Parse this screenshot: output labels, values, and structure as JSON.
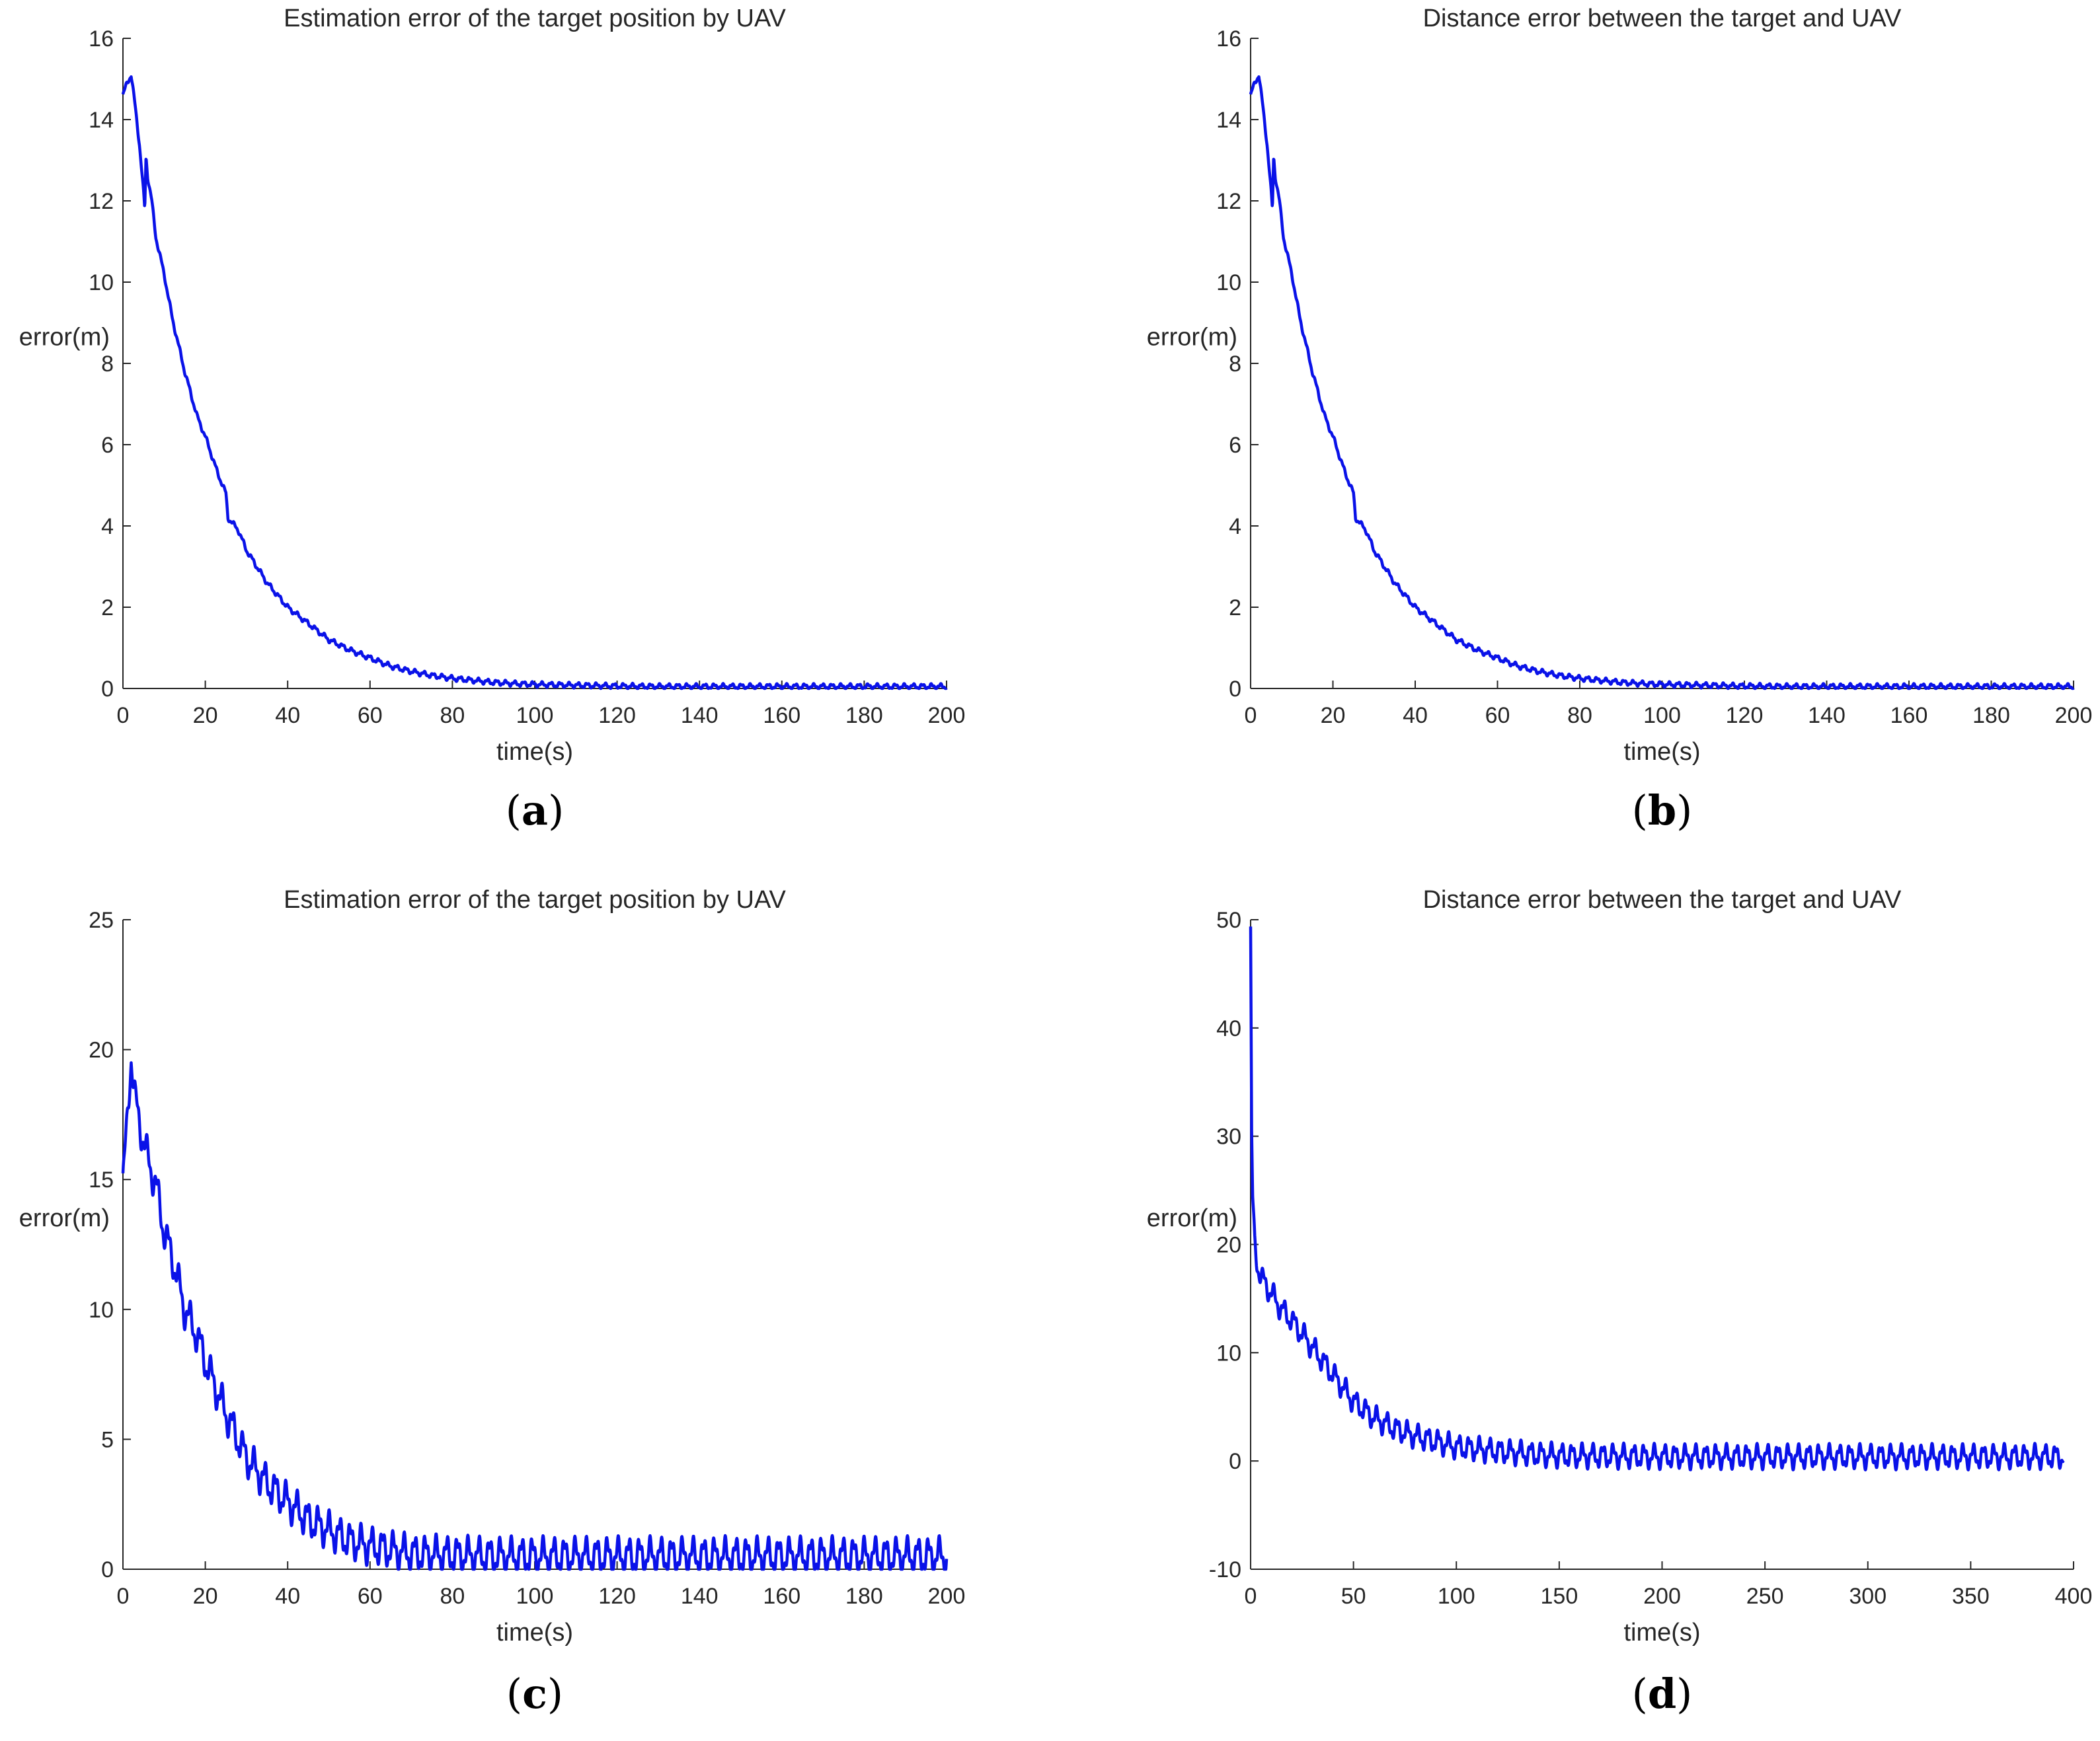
{
  "colors": {
    "line": "#0a12e8",
    "axis": "#262626",
    "background": "#ffffff"
  },
  "chart_data": [
    {
      "id": "a",
      "type": "line",
      "caption": "a",
      "title": "Estimation error of the target position by UAV",
      "xlabel": "time(s)",
      "ylabel": "error(m)",
      "xlim": [
        0,
        200
      ],
      "ylim": [
        0,
        16
      ],
      "xticks": [
        0,
        20,
        40,
        60,
        80,
        100,
        120,
        140,
        160,
        180,
        200
      ],
      "yticks": [
        0,
        2,
        4,
        6,
        8,
        10,
        12,
        14,
        16
      ],
      "series": [
        {
          "name": "estimation error",
          "x": [
            0,
            1,
            2,
            3,
            4,
            5,
            5.3,
            5.6,
            6,
            7,
            8,
            10,
            12,
            15,
            18,
            20,
            23,
            25,
            25.5,
            28,
            30,
            35,
            40,
            45,
            50,
            55,
            60,
            65,
            70,
            75,
            80,
            85,
            90,
            95,
            100,
            110,
            120,
            130,
            140,
            150,
            160,
            170,
            180,
            190,
            200
          ],
          "y": [
            14.6,
            14.9,
            15.1,
            14.3,
            13.4,
            12.2,
            11.8,
            13.1,
            12.6,
            12.0,
            11.1,
            10.2,
            9.1,
            7.8,
            6.7,
            6.2,
            5.3,
            4.8,
            4.2,
            3.9,
            3.4,
            2.6,
            2.0,
            1.6,
            1.2,
            0.95,
            0.75,
            0.55,
            0.42,
            0.32,
            0.25,
            0.2,
            0.15,
            0.12,
            0.1,
            0.08,
            0.06,
            0.05,
            0.05,
            0.05,
            0.05,
            0.05,
            0.05,
            0.05,
            0.05
          ],
          "noise": 0.05,
          "period": 2.2
        }
      ]
    },
    {
      "id": "b",
      "type": "line",
      "caption": "b",
      "title": "Distance error between the target and UAV",
      "xlabel": "time(s)",
      "ylabel": "error(m)",
      "xlim": [
        0,
        200
      ],
      "ylim": [
        0,
        16
      ],
      "xticks": [
        0,
        20,
        40,
        60,
        80,
        100,
        120,
        140,
        160,
        180,
        200
      ],
      "yticks": [
        0,
        2,
        4,
        6,
        8,
        10,
        12,
        14,
        16
      ],
      "series": [
        {
          "name": "distance error",
          "x": [
            0,
            1,
            2,
            3,
            4,
            5,
            5.3,
            5.6,
            6,
            7,
            8,
            10,
            12,
            15,
            18,
            20,
            23,
            25,
            25.5,
            28,
            30,
            35,
            40,
            45,
            50,
            55,
            60,
            65,
            70,
            75,
            80,
            85,
            90,
            95,
            100,
            110,
            120,
            130,
            140,
            150,
            160,
            170,
            180,
            190,
            200
          ],
          "y": [
            14.6,
            14.9,
            15.1,
            14.3,
            13.4,
            12.2,
            11.8,
            13.1,
            12.6,
            12.0,
            11.1,
            10.2,
            9.1,
            7.8,
            6.7,
            6.2,
            5.3,
            4.8,
            4.2,
            3.9,
            3.4,
            2.6,
            2.0,
            1.6,
            1.2,
            0.95,
            0.75,
            0.55,
            0.42,
            0.32,
            0.25,
            0.2,
            0.15,
            0.12,
            0.1,
            0.08,
            0.06,
            0.05,
            0.05,
            0.05,
            0.05,
            0.05,
            0.05,
            0.05,
            0.05
          ],
          "noise": 0.05,
          "period": 2.2
        }
      ]
    },
    {
      "id": "c",
      "type": "line",
      "caption": "c",
      "title": "Estimation error of the target position by UAV",
      "xlabel": "time(s)",
      "ylabel": "error(m)",
      "xlim": [
        0,
        200
      ],
      "ylim": [
        0,
        25
      ],
      "xticks": [
        0,
        20,
        40,
        60,
        80,
        100,
        120,
        140,
        160,
        180,
        200
      ],
      "yticks": [
        0,
        5,
        10,
        15,
        20,
        25
      ],
      "series": [
        {
          "name": "estimation error",
          "x": [
            0,
            1,
            2,
            3,
            4,
            6,
            8,
            10,
            12,
            15,
            18,
            20,
            25,
            30,
            35,
            40,
            45,
            50,
            55,
            60,
            65,
            70,
            80,
            90,
            100,
            120,
            140,
            160,
            180,
            200
          ],
          "y": [
            15.0,
            17.0,
            19.8,
            18.0,
            17.2,
            15.8,
            14.8,
            13.0,
            12.0,
            10.0,
            9.0,
            8.0,
            6.0,
            4.3,
            3.3,
            2.6,
            1.9,
            1.5,
            1.1,
            0.9,
            0.75,
            0.6,
            0.55,
            0.5,
            0.5,
            0.5,
            0.5,
            0.5,
            0.5,
            0.5
          ],
          "noise": 0.55,
          "period": 2.6
        }
      ]
    },
    {
      "id": "d",
      "type": "line",
      "caption": "d",
      "title": "Distance error between the target and UAV",
      "xlabel": "time(s)",
      "ylabel": "error(m)",
      "xlim": [
        0,
        400
      ],
      "ylim": [
        -10,
        50
      ],
      "xticks": [
        0,
        50,
        100,
        150,
        200,
        250,
        300,
        350,
        400
      ],
      "yticks": [
        -10,
        0,
        10,
        20,
        30,
        40,
        50
      ],
      "series": [
        {
          "name": "distance error",
          "x": [
            0,
            0.5,
            1,
            2,
            3,
            4,
            5,
            10,
            15,
            20,
            30,
            40,
            50,
            60,
            70,
            80,
            90,
            100,
            120,
            140,
            150,
            200,
            250,
            300,
            350,
            395
          ],
          "y": [
            49,
            30,
            24,
            20,
            18.5,
            17.6,
            17,
            15.5,
            14,
            13,
            10.5,
            8,
            5.5,
            4.0,
            3.0,
            2.3,
            1.8,
            1.3,
            0.9,
            0.6,
            0.5,
            0.4,
            0.4,
            0.4,
            0.4,
            0.4
          ],
          "noise": 0.85,
          "period": 5.0
        }
      ]
    }
  ]
}
